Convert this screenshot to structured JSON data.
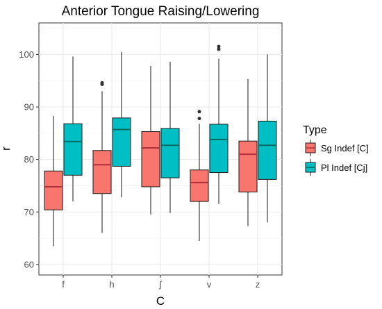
{
  "chart_data": {
    "type": "boxplot",
    "title": "Anterior Tongue Raising/Lowering",
    "xlabel": "C",
    "ylabel": "r",
    "categories": [
      "f",
      "h",
      "ʃ",
      "v",
      "z"
    ],
    "ylim": [
      58,
      106
    ],
    "yticks": [
      60,
      70,
      80,
      90,
      100
    ],
    "grid": true,
    "legend": {
      "title": "Type",
      "placement": "right"
    },
    "series": [
      {
        "name": "Sg Indef [C]",
        "color": "#f8766d",
        "boxes": [
          {
            "min": 63.5,
            "q1": 70.4,
            "median": 74.8,
            "q3": 77.8,
            "max": 88.3,
            "outliers": []
          },
          {
            "min": 66.0,
            "q1": 73.5,
            "median": 79.0,
            "q3": 81.7,
            "max": 93.0,
            "outliers": [
              94.6,
              94.3
            ]
          },
          {
            "min": 69.5,
            "q1": 74.8,
            "median": 82.2,
            "q3": 85.3,
            "max": 97.8,
            "outliers": []
          },
          {
            "min": 64.5,
            "q1": 72.0,
            "median": 75.6,
            "q3": 78.0,
            "max": 86.8,
            "outliers": [
              89.1,
              87.8
            ]
          },
          {
            "min": 67.3,
            "q1": 73.8,
            "median": 81.0,
            "q3": 83.5,
            "max": 95.3,
            "outliers": []
          }
        ]
      },
      {
        "name": "Pl Indef [Cj]",
        "color": "#00bfc4",
        "boxes": [
          {
            "min": 72.0,
            "q1": 77.0,
            "median": 83.4,
            "q3": 86.8,
            "max": 99.6,
            "outliers": []
          },
          {
            "min": 72.8,
            "q1": 78.7,
            "median": 85.7,
            "q3": 87.9,
            "max": 100.5,
            "outliers": []
          },
          {
            "min": 69.8,
            "q1": 76.5,
            "median": 82.7,
            "q3": 85.9,
            "max": 98.6,
            "outliers": []
          },
          {
            "min": 71.5,
            "q1": 77.5,
            "median": 83.8,
            "q3": 86.7,
            "max": 99.2,
            "outliers": [
              101.5,
              101.0
            ]
          },
          {
            "min": 68.0,
            "q1": 76.2,
            "median": 82.7,
            "q3": 87.3,
            "max": 100.0,
            "outliers": []
          }
        ]
      }
    ]
  }
}
